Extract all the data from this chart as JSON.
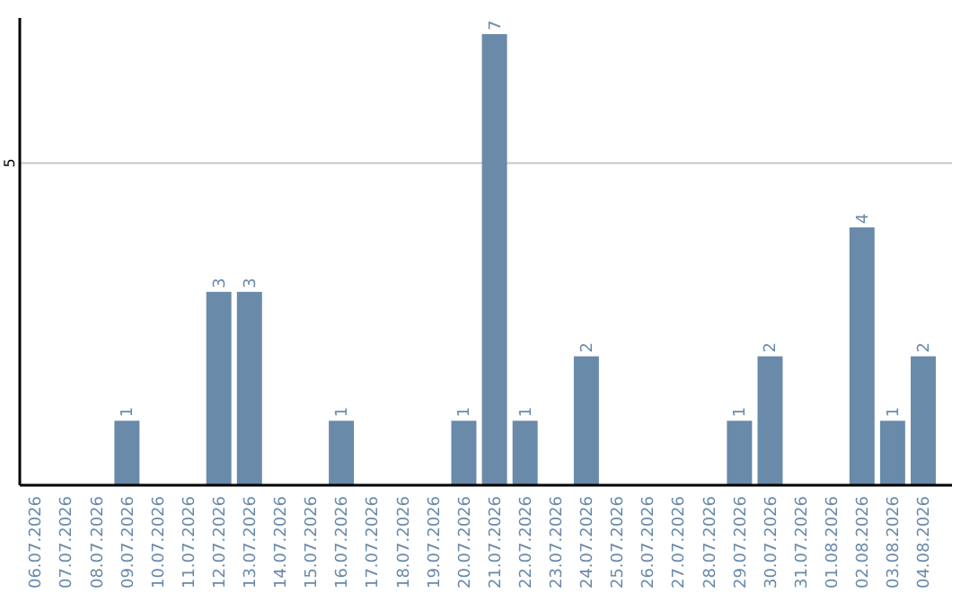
{
  "chart_data": {
    "type": "bar",
    "categories": [
      "06.07.2026",
      "07.07.2026",
      "08.07.2026",
      "09.07.2026",
      "10.07.2026",
      "11.07.2026",
      "12.07.2026",
      "13.07.2026",
      "14.07.2026",
      "15.07.2026",
      "16.07.2026",
      "17.07.2026",
      "18.07.2026",
      "19.07.2026",
      "20.07.2026",
      "21.07.2026",
      "22.07.2026",
      "23.07.2026",
      "24.07.2026",
      "25.07.2026",
      "26.07.2026",
      "27.07.2026",
      "28.07.2026",
      "29.07.2026",
      "30.07.2026",
      "31.07.2026",
      "01.08.2026",
      "02.08.2026",
      "03.08.2026",
      "04.08.2026"
    ],
    "values": [
      0,
      0,
      0,
      1,
      0,
      0,
      3,
      3,
      0,
      0,
      1,
      0,
      0,
      0,
      1,
      7,
      1,
      0,
      2,
      0,
      0,
      0,
      0,
      1,
      2,
      0,
      0,
      4,
      1,
      2
    ],
    "color": "#6a8aaa",
    "ylim": [
      0,
      7.25
    ],
    "yticks": [
      5
    ],
    "grid": "y",
    "value_labels": [
      null,
      null,
      null,
      "1",
      null,
      null,
      "3",
      "3",
      null,
      null,
      "1",
      null,
      null,
      null,
      "1",
      "7",
      "1",
      null,
      "2",
      null,
      null,
      null,
      null,
      "1",
      "2",
      null,
      null,
      "4",
      "1",
      "2"
    ]
  }
}
